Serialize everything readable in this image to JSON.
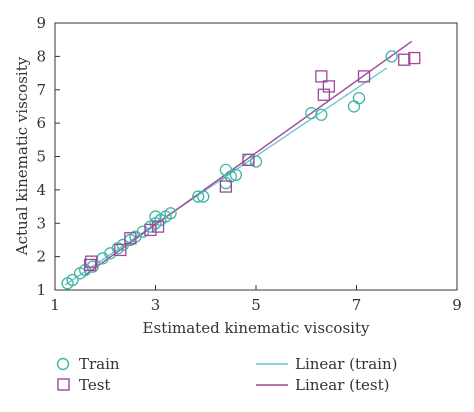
{
  "chart_data": {
    "type": "scatter",
    "xlabel": "Estimated kinematic viscosity",
    "ylabel": "Actual kinematic viscosity",
    "xlim": [
      1,
      9
    ],
    "ylim": [
      1,
      9
    ],
    "x_ticks": [
      "1",
      "3",
      "5",
      "7",
      "9"
    ],
    "y_ticks": [
      "1",
      "2",
      "3",
      "4",
      "5",
      "6",
      "7",
      "8",
      "9"
    ],
    "grid": false,
    "legend": "bottom",
    "series": [
      {
        "name": "Train",
        "marker": "circle",
        "color": "#3fb7a5",
        "points": [
          [
            1.25,
            1.2
          ],
          [
            1.35,
            1.3
          ],
          [
            1.5,
            1.5
          ],
          [
            1.6,
            1.6
          ],
          [
            1.75,
            1.7
          ],
          [
            1.95,
            1.95
          ],
          [
            2.1,
            2.1
          ],
          [
            2.25,
            2.25
          ],
          [
            2.35,
            2.35
          ],
          [
            2.5,
            2.5
          ],
          [
            2.6,
            2.6
          ],
          [
            2.75,
            2.75
          ],
          [
            2.9,
            2.9
          ],
          [
            3.0,
            3.0
          ],
          [
            3.0,
            3.2
          ],
          [
            3.1,
            3.1
          ],
          [
            3.2,
            3.2
          ],
          [
            3.3,
            3.3
          ],
          [
            3.85,
            3.8
          ],
          [
            3.95,
            3.8
          ],
          [
            4.4,
            4.2
          ],
          [
            4.4,
            4.6
          ],
          [
            4.5,
            4.4
          ],
          [
            4.6,
            4.45
          ],
          [
            4.85,
            4.9
          ],
          [
            5.0,
            4.85
          ],
          [
            6.1,
            6.3
          ],
          [
            6.3,
            6.25
          ],
          [
            6.95,
            6.5
          ],
          [
            7.05,
            6.75
          ],
          [
            7.7,
            8.0
          ]
        ]
      },
      {
        "name": "Test",
        "marker": "square",
        "color": "#a0479a",
        "points": [
          [
            1.7,
            1.75
          ],
          [
            1.72,
            1.85
          ],
          [
            2.3,
            2.2
          ],
          [
            2.5,
            2.55
          ],
          [
            2.9,
            2.8
          ],
          [
            3.05,
            2.9
          ],
          [
            4.4,
            4.1
          ],
          [
            4.85,
            4.9
          ],
          [
            6.3,
            7.4
          ],
          [
            6.35,
            6.85
          ],
          [
            6.45,
            7.1
          ],
          [
            7.15,
            7.4
          ],
          [
            7.95,
            7.9
          ],
          [
            8.15,
            7.95
          ]
        ]
      },
      {
        "name": "Linear (train)",
        "type": "line",
        "color": "#6ec6cf",
        "points": [
          [
            1.2,
            1.15
          ],
          [
            7.6,
            7.65
          ]
        ]
      },
      {
        "name": "Linear (test)",
        "type": "line",
        "color": "#a0479a",
        "points": [
          [
            1.6,
            1.45
          ],
          [
            8.1,
            8.45
          ]
        ]
      }
    ]
  }
}
